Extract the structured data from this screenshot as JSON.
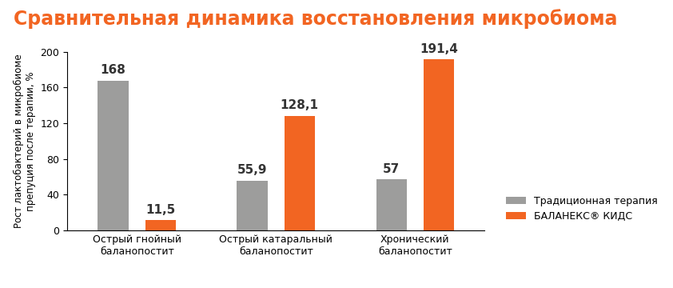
{
  "chart_data": {
    "type": "bar",
    "title": "Сравнительная динамика восстановления микробиома",
    "y_label": "Рост лактобактерий в микробиоме\nпрепуция после терапии, %",
    "categories": [
      "Острый гнойный\nбаланопостит",
      "Острый катаральный\nбаланопостит",
      "Хронический\nбаланопостит"
    ],
    "series": [
      {
        "name": "Традиционная терапия",
        "color": "#9d9d9c",
        "values": [
          168,
          55.9,
          57
        ],
        "value_labels": [
          "168",
          "55,9",
          "57"
        ]
      },
      {
        "name": "БАЛАНЕКС® КИДС",
        "color": "#f26522",
        "values": [
          11.5,
          128.1,
          191.4
        ],
        "value_labels": [
          "11,5",
          "128,1",
          "191,4"
        ]
      }
    ],
    "ylim": [
      0,
      200
    ],
    "yticks": [
      0,
      40,
      80,
      120,
      160,
      200
    ],
    "grid": false,
    "legend": "lower right",
    "data_labels": true
  }
}
